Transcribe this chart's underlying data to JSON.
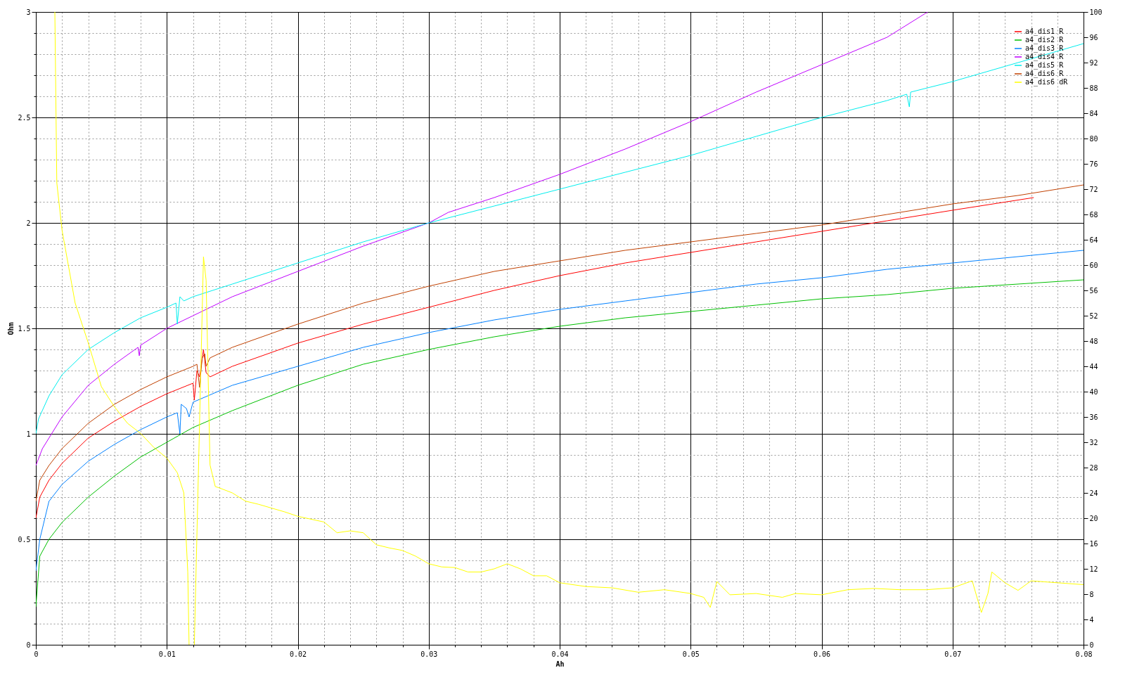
{
  "chart_data": {
    "type": "line",
    "xlabel": "Ah",
    "ylabel": "Ohm",
    "xlim": [
      0,
      0.08
    ],
    "xticks": [
      0,
      {
        "value": 0.002,
        "label": null
      },
      {
        "value": 0.004,
        "label": null
      },
      {
        "value": 0.006,
        "label": null
      },
      {
        "value": 0.008,
        "label": null
      },
      0.01,
      {
        "value": 0.012,
        "label": null
      },
      {
        "value": 0.014,
        "label": null
      },
      {
        "value": 0.016,
        "label": null
      },
      {
        "value": 0.018,
        "label": null
      },
      0.02,
      {
        "value": 0.022,
        "label": null
      },
      {
        "value": 0.024,
        "label": null
      },
      {
        "value": 0.026,
        "label": null
      },
      {
        "value": 0.028,
        "label": null
      },
      0.03,
      {
        "value": 0.032,
        "label": null
      },
      {
        "value": 0.034,
        "label": null
      },
      {
        "value": 0.036,
        "label": null
      },
      {
        "value": 0.038,
        "label": null
      },
      0.04,
      {
        "value": 0.042,
        "label": null
      },
      {
        "value": 0.044,
        "label": null
      },
      {
        "value": 0.046,
        "label": null
      },
      {
        "value": 0.048,
        "label": null
      },
      0.05,
      {
        "value": 0.052,
        "label": null
      },
      {
        "value": 0.054,
        "label": null
      },
      {
        "value": 0.056,
        "label": null
      },
      {
        "value": 0.058,
        "label": null
      },
      0.06,
      {
        "value": 0.062,
        "label": null
      },
      {
        "value": 0.064,
        "label": null
      },
      {
        "value": 0.066,
        "label": null
      },
      {
        "value": 0.068,
        "label": null
      },
      0.07,
      {
        "value": 0.072,
        "label": null
      },
      {
        "value": 0.074,
        "label": null
      },
      {
        "value": 0.076,
        "label": null
      },
      {
        "value": 0.078,
        "label": null
      },
      0.08
    ],
    "ylim": [
      0,
      3
    ],
    "yticks": [
      0,
      {
        "value": 0.1,
        "label": null
      },
      {
        "value": 0.2,
        "label": null
      },
      {
        "value": 0.3,
        "label": null
      },
      {
        "value": 0.4,
        "label": null
      },
      0.5,
      {
        "value": 0.6,
        "label": null
      },
      {
        "value": 0.7,
        "label": null
      },
      {
        "value": 0.8,
        "label": null
      },
      {
        "value": 0.9,
        "label": null
      },
      1,
      {
        "value": 1.1,
        "label": null
      },
      {
        "value": 1.2,
        "label": null
      },
      {
        "value": 1.3,
        "label": null
      },
      {
        "value": 1.4,
        "label": null
      },
      1.5,
      {
        "value": 1.6,
        "label": null
      },
      {
        "value": 1.7,
        "label": null
      },
      {
        "value": 1.8,
        "label": null
      },
      {
        "value": 1.9,
        "label": null
      },
      2,
      {
        "value": 2.1,
        "label": null
      },
      {
        "value": 2.2,
        "label": null
      },
      {
        "value": 2.3,
        "label": null
      },
      {
        "value": 2.4,
        "label": null
      },
      2.5,
      {
        "value": 2.6,
        "label": null
      },
      {
        "value": 2.7,
        "label": null
      },
      {
        "value": 2.8,
        "label": null
      },
      {
        "value": 2.9,
        "label": null
      },
      3
    ],
    "y2lim": [
      0,
      100
    ],
    "y2ticks": [
      0,
      4,
      8,
      12,
      16,
      20,
      24,
      28,
      32,
      36,
      40,
      44,
      48,
      52,
      56,
      60,
      64,
      68,
      72,
      76,
      80,
      84,
      88,
      92,
      96,
      100
    ],
    "grid": true,
    "legend": "top right",
    "series": [
      {
        "name": "a4_dis1 R",
        "color": "#ff0000",
        "x": [
          0,
          0.0003,
          0.001,
          0.002,
          0.004,
          0.006,
          0.008,
          0.01,
          0.012,
          0.0121,
          0.0123,
          0.0125,
          0.0128,
          0.013,
          0.0133,
          0.015,
          0.02,
          0.025,
          0.03,
          0.035,
          0.04,
          0.045,
          0.05,
          0.055,
          0.06,
          0.065,
          0.07,
          0.0762
        ],
        "values": [
          0.6,
          0.7,
          0.78,
          0.86,
          0.98,
          1.06,
          1.13,
          1.19,
          1.24,
          1.16,
          1.3,
          1.27,
          1.4,
          1.29,
          1.27,
          1.32,
          1.43,
          1.52,
          1.6,
          1.68,
          1.75,
          1.81,
          1.86,
          1.91,
          1.96,
          2.01,
          2.06,
          2.12
        ]
      },
      {
        "name": "a4_dis2 R",
        "color": "#00c000",
        "x": [
          0,
          0.0003,
          0.001,
          0.002,
          0.004,
          0.006,
          0.008,
          0.01,
          0.012,
          0.015,
          0.02,
          0.025,
          0.03,
          0.035,
          0.04,
          0.045,
          0.05,
          0.055,
          0.06,
          0.065,
          0.07,
          0.08
        ],
        "values": [
          0.18,
          0.42,
          0.5,
          0.58,
          0.7,
          0.8,
          0.89,
          0.96,
          1.03,
          1.11,
          1.23,
          1.33,
          1.4,
          1.46,
          1.51,
          1.55,
          1.58,
          1.61,
          1.64,
          1.66,
          1.69,
          1.73
        ]
      },
      {
        "name": "a4_dis3 R",
        "color": "#0080ff",
        "x": [
          0,
          0.0003,
          0.001,
          0.002,
          0.004,
          0.006,
          0.008,
          0.01,
          0.0108,
          0.011,
          0.0111,
          0.0115,
          0.0117,
          0.012,
          0.015,
          0.02,
          0.025,
          0.03,
          0.035,
          0.04,
          0.045,
          0.05,
          0.055,
          0.06,
          0.065,
          0.07,
          0.08
        ],
        "values": [
          0.35,
          0.5,
          0.68,
          0.76,
          0.87,
          0.95,
          1.02,
          1.08,
          1.1,
          1.0,
          1.14,
          1.12,
          1.08,
          1.15,
          1.23,
          1.32,
          1.41,
          1.48,
          1.54,
          1.59,
          1.63,
          1.67,
          1.71,
          1.74,
          1.78,
          1.81,
          1.87
        ]
      },
      {
        "name": "a4_dis4 R",
        "color": "#c000ff",
        "x": [
          0,
          0.0005,
          0.001,
          0.002,
          0.004,
          0.006,
          0.0078,
          0.0079,
          0.008,
          0.01,
          0.012,
          0.015,
          0.02,
          0.025,
          0.03,
          0.0315,
          0.035,
          0.04,
          0.045,
          0.05,
          0.055,
          0.06,
          0.065,
          0.0681
        ],
        "values": [
          0.85,
          0.93,
          0.98,
          1.08,
          1.23,
          1.33,
          1.41,
          1.37,
          1.42,
          1.5,
          1.56,
          1.65,
          1.77,
          1.89,
          2.0,
          2.05,
          2.12,
          2.23,
          2.35,
          2.48,
          2.62,
          2.75,
          2.88,
          3.0
        ]
      },
      {
        "name": "a4_dis5 R",
        "color": "#00eeee",
        "x": [
          0,
          0.0002,
          0.001,
          0.002,
          0.004,
          0.006,
          0.008,
          0.01,
          0.0107,
          0.0108,
          0.011,
          0.0113,
          0.012,
          0.015,
          0.02,
          0.025,
          0.03,
          0.035,
          0.04,
          0.045,
          0.05,
          0.055,
          0.06,
          0.065,
          0.0665,
          0.0667,
          0.0668,
          0.07,
          0.075,
          0.08
        ],
        "values": [
          1.0,
          1.07,
          1.18,
          1.28,
          1.4,
          1.48,
          1.55,
          1.6,
          1.62,
          1.52,
          1.65,
          1.63,
          1.65,
          1.71,
          1.81,
          1.91,
          2.0,
          2.08,
          2.16,
          2.24,
          2.32,
          2.41,
          2.5,
          2.58,
          2.61,
          2.55,
          2.62,
          2.67,
          2.76,
          2.85
        ]
      },
      {
        "name": "a4_dis6 R",
        "color": "#c04000",
        "x": [
          0,
          0.0003,
          0.001,
          0.002,
          0.004,
          0.006,
          0.008,
          0.01,
          0.012,
          0.0123,
          0.0125,
          0.0127,
          0.0129,
          0.013,
          0.0133,
          0.015,
          0.02,
          0.025,
          0.03,
          0.035,
          0.04,
          0.045,
          0.05,
          0.055,
          0.06,
          0.065,
          0.07,
          0.075,
          0.08
        ],
        "values": [
          0.68,
          0.78,
          0.85,
          0.93,
          1.05,
          1.14,
          1.21,
          1.27,
          1.32,
          1.33,
          1.22,
          1.36,
          1.38,
          1.32,
          1.36,
          1.41,
          1.52,
          1.62,
          1.7,
          1.77,
          1.82,
          1.87,
          1.91,
          1.95,
          1.99,
          2.04,
          2.09,
          2.13,
          2.18
        ]
      },
      {
        "name": "a4_dis6 dR",
        "color": "#ffff00",
        "axis": "y2",
        "x": [
          0.00145,
          0.0016,
          0.002,
          0.003,
          0.004,
          0.005,
          0.006,
          0.007,
          0.008,
          0.009,
          0.01,
          0.0108,
          0.0113,
          0.0116,
          0.0117,
          0.0119,
          0.0121,
          0.0128,
          0.013,
          0.0133,
          0.0137,
          0.014,
          0.015,
          0.016,
          0.017,
          0.018,
          0.019,
          0.02,
          0.022,
          0.023,
          0.024,
          0.025,
          0.026,
          0.027,
          0.028,
          0.029,
          0.03,
          0.031,
          0.032,
          0.033,
          0.034,
          0.035,
          0.036,
          0.037,
          0.038,
          0.039,
          0.04,
          0.042,
          0.044,
          0.046,
          0.048,
          0.05,
          0.051,
          0.0515,
          0.052,
          0.053,
          0.055,
          0.057,
          0.058,
          0.06,
          0.062,
          0.064,
          0.066,
          0.068,
          0.07,
          0.0715,
          0.0722,
          0.0727,
          0.073,
          0.074,
          0.075,
          0.076,
          0.078,
          0.08
        ],
        "values": [
          100,
          73,
          65.5,
          54,
          47.7,
          40.8,
          37.6,
          35,
          33.4,
          31.2,
          29.5,
          27.2,
          24,
          11.5,
          0,
          null,
          0,
          61.3,
          57.6,
          28.4,
          25,
          24.8,
          24,
          22.7,
          22.2,
          21.6,
          21,
          20.3,
          19.4,
          17.7,
          18,
          17.7,
          15.8,
          15.3,
          14.9,
          14,
          12.8,
          12.3,
          12.2,
          11.5,
          11.5,
          12,
          12.8,
          12,
          10.9,
          10.9,
          9.8,
          9.2,
          9,
          8.3,
          8.7,
          8.1,
          7.5,
          5.9,
          10,
          7.9,
          8.1,
          7.5,
          8.1,
          7.9,
          8.7,
          8.9,
          8.7,
          8.7,
          9,
          10.1,
          5.1,
          8.1,
          11.5,
          9.8,
          8.6,
          10.1,
          9.8,
          9.5
        ]
      }
    ]
  }
}
